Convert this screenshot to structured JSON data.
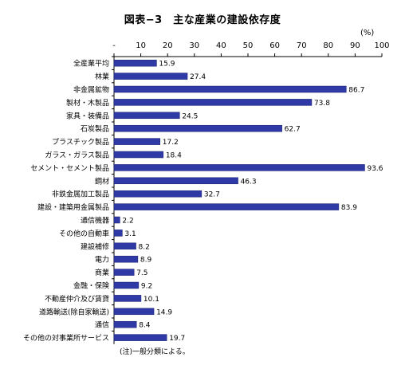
{
  "title": "図表−3　主な産業の建設依存度",
  "unit": "(%)",
  "note": "(注)一般分類による。",
  "colors": {
    "bar": "#2f3aa6",
    "bar_edge": "#1a2070",
    "axis": "#000000",
    "grid": "#cccccc"
  },
  "chart_data": {
    "type": "bar",
    "orientation": "horizontal",
    "title": "図表−3　主な産業の建設依存度",
    "xlabel": "(%)",
    "ylabel": "",
    "xlim": [
      0,
      100
    ],
    "x_ticks": [
      "-",
      "10",
      "20",
      "30",
      "40",
      "50",
      "60",
      "70",
      "80",
      "90",
      "100"
    ],
    "grid": false,
    "categories": [
      "全産業平均",
      "林業",
      "非金属鉱物",
      "製材・木製品",
      "家具・装備品",
      "石炭製品",
      "プラスチック製品",
      "ガラス・ガラス製品",
      "セメント・セメント製品",
      "鋼材",
      "非鉄金属加工製品",
      "建設・建築用金属製品",
      "通信機器",
      "その他の自動車",
      "建設補修",
      "電力",
      "商業",
      "金融・保険",
      "不動産仲介及び賃貸",
      "道路輸送(除自家輸送)",
      "通信",
      "その他の対事業所サービス"
    ],
    "values": [
      15.9,
      27.4,
      86.7,
      73.8,
      24.5,
      62.7,
      17.2,
      18.4,
      93.6,
      46.3,
      32.7,
      83.9,
      2.2,
      3.1,
      8.2,
      8.9,
      7.5,
      9.2,
      10.1,
      14.9,
      8.4,
      19.7
    ],
    "value_labels": [
      "15.9",
      "27.4",
      "86.7",
      "73.8",
      "24.5",
      "62.7",
      "17.2",
      "18.4",
      "93.6",
      "46.3",
      "32.7",
      "83.9",
      "2.2",
      "3.1",
      "8.2",
      "8.9",
      "7.5",
      "9.2",
      "10.1",
      "14.9",
      "8.4",
      "19.7"
    ]
  }
}
